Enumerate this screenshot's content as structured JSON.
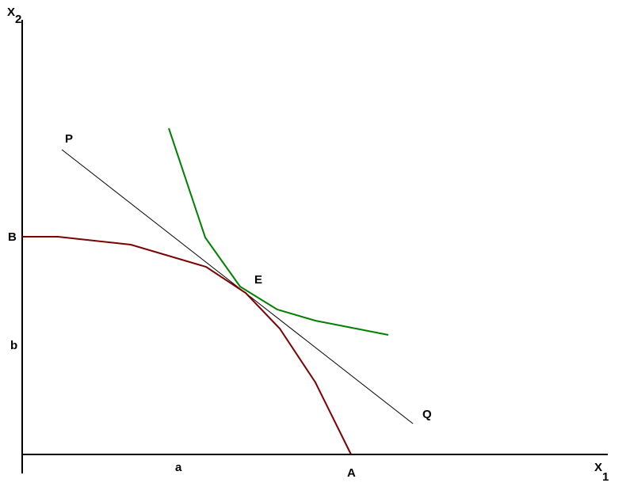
{
  "axes": {
    "y": {
      "label": "X",
      "subscript": "2"
    },
    "x": {
      "label": "X",
      "subscript": "1"
    }
  },
  "labels": {
    "P": "P",
    "Q": "Q",
    "E": "E",
    "B": "B",
    "b": "b",
    "a": "a",
    "A": "A"
  }
}
